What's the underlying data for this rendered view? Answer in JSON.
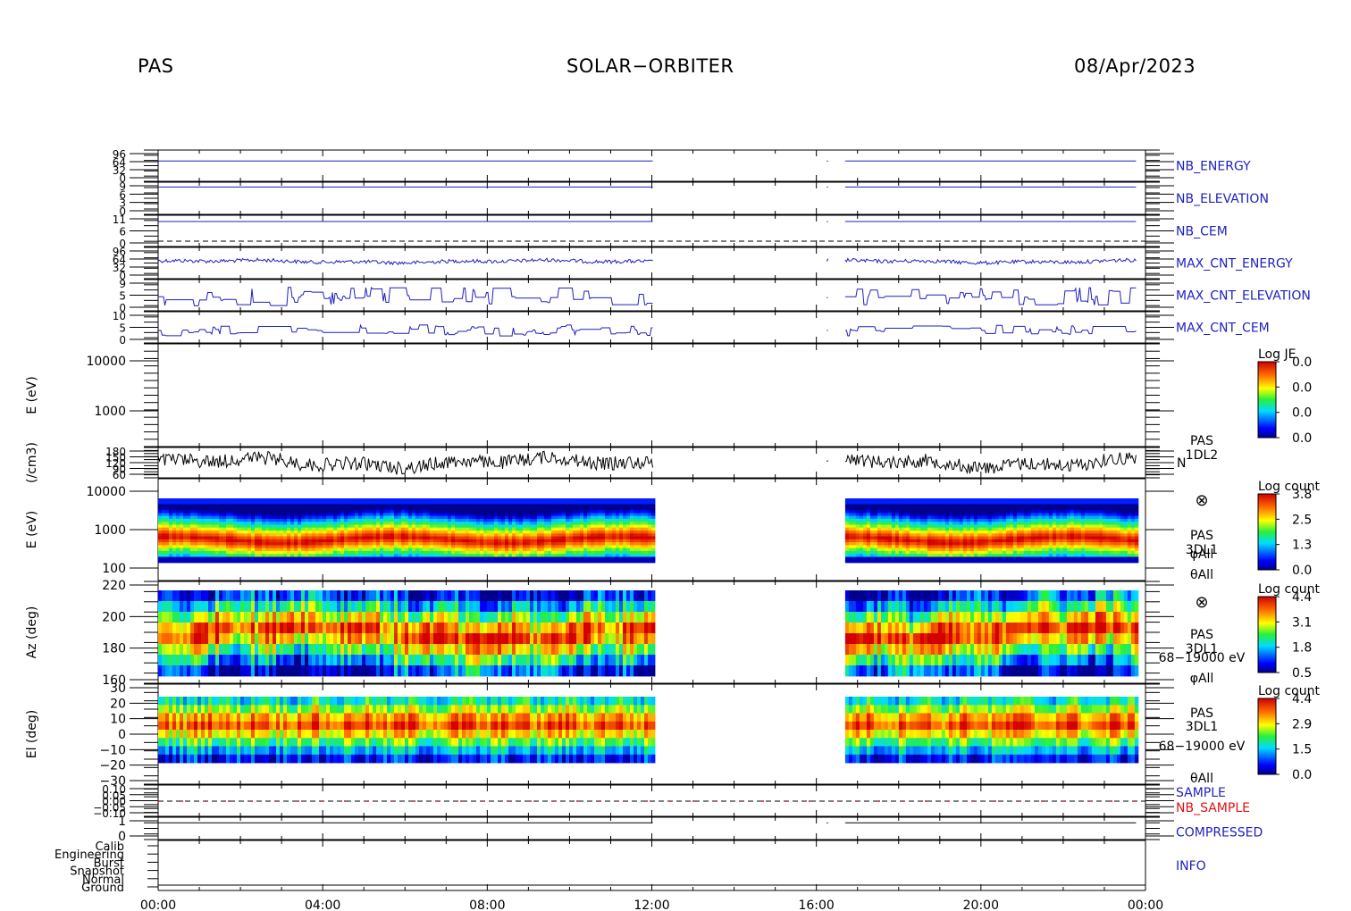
{
  "header": {
    "instrument": "PAS",
    "mission": "SOLAR−ORBITER",
    "date": "08/Apr/2023"
  },
  "colors": {
    "blue_trace": "#1f1fbf",
    "black_trace": "#000000",
    "red_label": "#e01010",
    "axis": "#000000"
  },
  "chart_data": {
    "type": "heatmap",
    "x_axis": {
      "ticks": [
        "00:00",
        "04:00",
        "08:00",
        "12:00",
        "16:00",
        "20:00",
        "00:00"
      ],
      "range_hours": [
        0,
        24
      ],
      "data_coverage_hours": [
        [
          0.0,
          12.05
        ],
        [
          16.25,
          16.3
        ],
        [
          16.7,
          23.8
        ]
      ]
    },
    "panels": [
      {
        "id": "nb_energy",
        "type": "line",
        "label": "NB_ENERGY",
        "label_color": "#1f1fbf",
        "ytick_labels": [
          "96",
          "64",
          "32",
          "0"
        ]
      },
      {
        "id": "nb_elevation",
        "type": "line",
        "label": "NB_ELEVATION",
        "label_color": "#1f1fbf",
        "ytick_labels": [
          "9",
          "6",
          "3",
          "0"
        ]
      },
      {
        "id": "nb_cem",
        "type": "line",
        "label": "NB_CEM",
        "label_color": "#1f1fbf",
        "ytick_labels": [
          "11",
          "6",
          "0"
        ]
      },
      {
        "id": "max_cnt_energy",
        "type": "line",
        "label": "MAX_CNT_ENERGY",
        "label_color": "#1f1fbf",
        "ytick_labels": [
          "96",
          "64",
          "32",
          "0"
        ]
      },
      {
        "id": "max_cnt_elevation",
        "type": "line",
        "label": "MAX_CNT_ELEVATION",
        "label_color": "#1f1fbf",
        "ytick_labels": [
          "9",
          "5",
          "0"
        ]
      },
      {
        "id": "max_cnt_cem",
        "type": "line",
        "label": "MAX_CNT_CEM",
        "label_color": "#1f1fbf",
        "ytick_labels": [
          "10",
          "5",
          "0"
        ]
      },
      {
        "id": "energy_je",
        "type": "heatmap",
        "ylabel": "E (eV)",
        "yscale": "log",
        "ytick_labels": [
          "10000",
          "1000"
        ],
        "colorbar": {
          "title": "Log JE",
          "ticks": [
            "0.0",
            "0.0",
            "0.0",
            "0.0"
          ]
        }
      },
      {
        "id": "density",
        "type": "line",
        "ylabel": "(/cm3)",
        "ytick_labels": [
          "180",
          "150",
          "120",
          "90",
          "60"
        ],
        "side_label": [
          "PAS",
          "1DL2"
        ],
        "series_label": "N"
      },
      {
        "id": "energy_3dl1",
        "type": "heatmap",
        "ylabel": "E (eV)",
        "yscale": "log",
        "ylim": [
          100,
          10000
        ],
        "ytick_labels": [
          "10000",
          "1000",
          "100"
        ],
        "side_label": [
          "PAS",
          "3DL1",
          "φAll",
          "θAll"
        ],
        "colorbar": {
          "title": "Log count",
          "ticks": [
            "3.8",
            "2.5",
            "1.3",
            "0.0"
          ]
        }
      },
      {
        "id": "azimuth",
        "type": "heatmap",
        "ylabel": "Az (deg)",
        "ylim": [
          155,
          225
        ],
        "ytick_labels": [
          "220",
          "200",
          "180",
          "160"
        ],
        "side_label": [
          "PAS",
          "3DL1",
          "68−19000 eV",
          "φAll"
        ],
        "colorbar": {
          "title": "Log count",
          "ticks": [
            "4.4",
            "3.1",
            "1.8",
            "0.5"
          ]
        }
      },
      {
        "id": "elevation",
        "type": "heatmap",
        "ylabel": "El (deg)",
        "ylim": [
          -30,
          30
        ],
        "ytick_labels": [
          "30",
          "20",
          "10",
          "0",
          "−10",
          "−20",
          "−30"
        ],
        "side_label": [
          "PAS",
          "3DL1",
          "68−19000 eV",
          "θAll"
        ],
        "colorbar": {
          "title": "Log count",
          "ticks": [
            "4.4",
            "2.9",
            "1.5",
            "0.0"
          ]
        }
      },
      {
        "id": "sample",
        "type": "line",
        "ytick_labels": [
          "0.10",
          "0.05",
          "0.00",
          "−0.05",
          "−0.10"
        ],
        "labels": [
          {
            "text": "SAMPLE",
            "color": "#1f1fbf"
          },
          {
            "text": "NB_SAMPLE",
            "color": "#e01010"
          }
        ]
      },
      {
        "id": "compressed",
        "type": "line",
        "label": "COMPRESSED",
        "label_color": "#1f1fbf",
        "ytick_labels": [
          "1",
          "0"
        ]
      },
      {
        "id": "info",
        "type": "line",
        "label": "INFO",
        "label_color": "#1f1fbf",
        "ytick_labels": [
          "Calib",
          "Engineering",
          "Burst",
          "Snapshot",
          "Normal",
          "Ground"
        ]
      }
    ]
  }
}
